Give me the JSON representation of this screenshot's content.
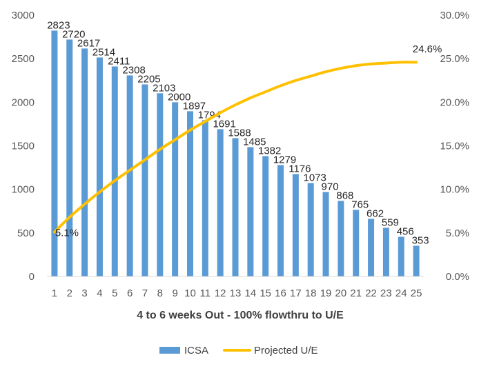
{
  "chart_data": {
    "type": "bar",
    "xlabel": "4 to 6 weeks Out - 100% flowthru to U/E",
    "categories": [
      "1",
      "2",
      "3",
      "4",
      "5",
      "6",
      "7",
      "8",
      "9",
      "10",
      "11",
      "12",
      "13",
      "14",
      "15",
      "16",
      "17",
      "18",
      "19",
      "20",
      "21",
      "22",
      "23",
      "24",
      "25"
    ],
    "series": [
      {
        "name": "ICSA",
        "type": "bar",
        "axis": "left",
        "color": "#5b9bd5",
        "values": [
          2823,
          2720,
          2617,
          2514,
          2411,
          2308,
          2205,
          2103,
          2000,
          1897,
          1794,
          1691,
          1588,
          1485,
          1382,
          1279,
          1176,
          1073,
          970,
          868,
          765,
          662,
          559,
          456,
          353
        ]
      },
      {
        "name": "Projected U/E",
        "type": "line",
        "axis": "right",
        "color": "#ffc000",
        "values": [
          5.1,
          6.8,
          8.3,
          9.7,
          11.0,
          12.2,
          13.4,
          14.6,
          15.7,
          16.8,
          17.8,
          18.8,
          19.7,
          20.5,
          21.2,
          21.9,
          22.5,
          23.0,
          23.5,
          23.9,
          24.2,
          24.4,
          24.5,
          24.6,
          24.6
        ],
        "labels": [
          {
            "index": 0,
            "text": "5.1%"
          },
          {
            "index": 24,
            "text": "24.6%"
          }
        ]
      }
    ],
    "y_left": {
      "min": 0,
      "max": 3000,
      "step": 500,
      "ticks": [
        "0",
        "500",
        "1000",
        "1500",
        "2000",
        "2500",
        "3000"
      ]
    },
    "y_right": {
      "min": 0,
      "max": 30,
      "step": 5,
      "ticks": [
        "0.0%",
        "5.0%",
        "10.0%",
        "15.0%",
        "20.0%",
        "25.0%",
        "30.0%"
      ]
    },
    "grid": false,
    "legend": {
      "position": "bottom",
      "entries": [
        "ICSA",
        "Projected U/E"
      ]
    }
  }
}
